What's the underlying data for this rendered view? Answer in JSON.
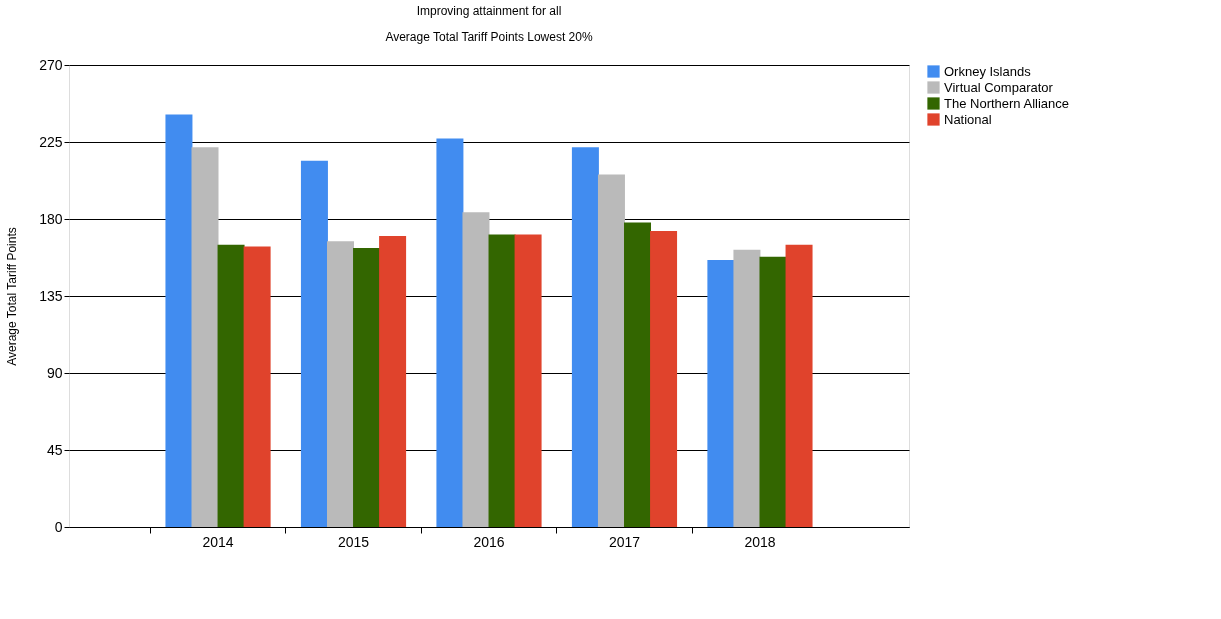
{
  "chart_data": {
    "type": "bar",
    "title": "Improving attainment for all",
    "subtitle": "Average Total Tariff Points Lowest 20%",
    "ylabel": "Average Total Tariff Points",
    "categories": [
      "2014",
      "2015",
      "2016",
      "2017",
      "2018"
    ],
    "series": [
      {
        "name": "Orkney Islands",
        "color": "#418cf0",
        "values": [
          241,
          214,
          227,
          222,
          156
        ]
      },
      {
        "name": "Virtual Comparator",
        "color": "#bababa",
        "values": [
          222,
          167,
          184,
          206,
          162
        ]
      },
      {
        "name": "The Northern Alliance",
        "color": "#336600",
        "values": [
          165,
          163,
          171,
          178,
          158
        ]
      },
      {
        "name": "National",
        "color": "#e0432c",
        "values": [
          164,
          170,
          171,
          173,
          165
        ]
      }
    ],
    "ylim": [
      0,
      270
    ],
    "yticks": [
      0,
      45,
      90,
      135,
      180,
      225,
      270
    ],
    "grid": "y",
    "legend": "top right"
  }
}
